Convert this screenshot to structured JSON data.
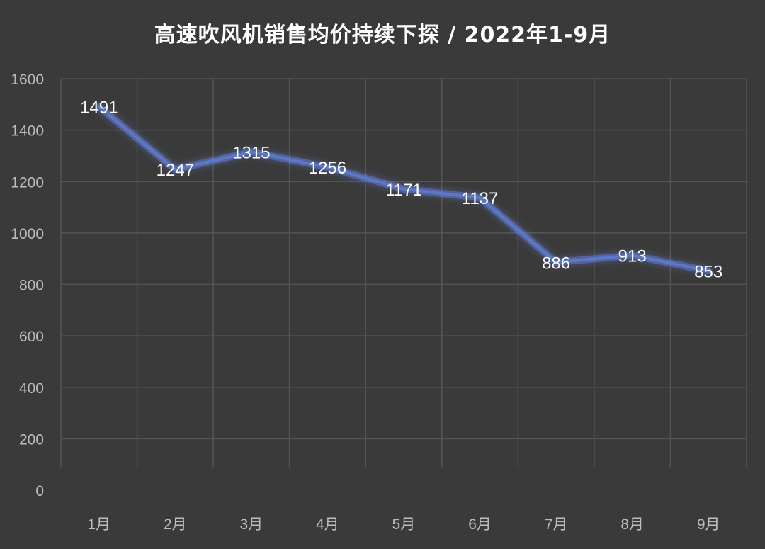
{
  "chart_data": {
    "type": "line",
    "title": "高速吹风机销售均价持续下探 / 2022年1-9月",
    "xlabel": "",
    "ylabel": "",
    "categories": [
      "1月",
      "2月",
      "3月",
      "4月",
      "5月",
      "6月",
      "7月",
      "8月",
      "9月"
    ],
    "series": [
      {
        "values": [
          1491,
          1247,
          1315,
          1256,
          1171,
          1137,
          886,
          913,
          853
        ]
      }
    ],
    "ylim": [
      0,
      1600
    ],
    "yticks": [
      0,
      200,
      400,
      600,
      800,
      1000,
      1200,
      1400,
      1600
    ],
    "grid": true,
    "legend": "none",
    "data_labels": true,
    "colors": {
      "background": "#3a3a3a",
      "grid": "#555555",
      "line": "#5b78c9",
      "glow": "#6f8fff",
      "text": "#ffffff",
      "tick": "#bdbdbd"
    }
  }
}
